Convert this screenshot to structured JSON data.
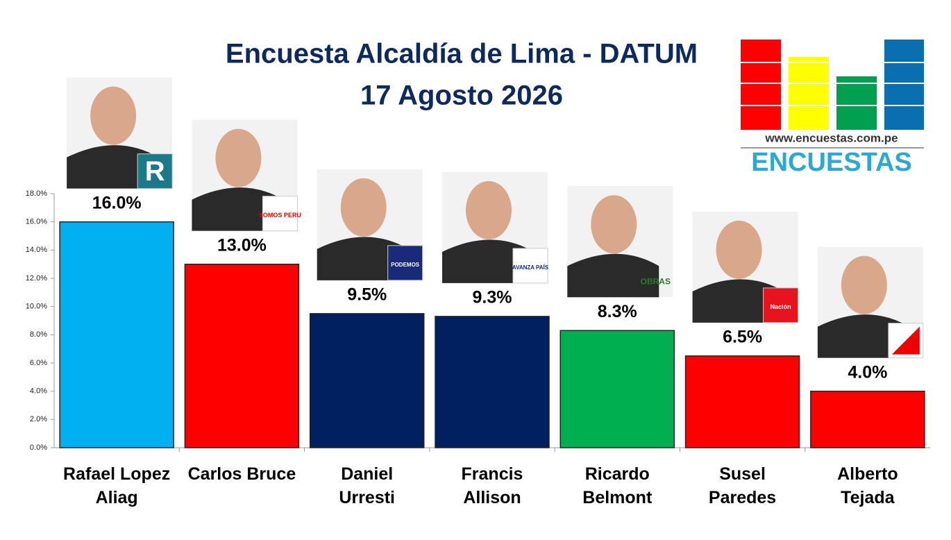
{
  "chart_data": {
    "type": "bar",
    "title": "Encuesta Alcaldía de Lima - DATUM",
    "subtitle": "17 Agosto 2026",
    "categories": [
      "Rafael Lopez Aliag",
      "Carlos Bruce",
      "Daniel Urresti",
      "Francis Allison",
      "Ricardo Belmont",
      "Susel Paredes",
      "Alberto Tejada"
    ],
    "values": [
      16.0,
      13.0,
      9.5,
      9.3,
      8.3,
      6.5,
      4.0
    ],
    "value_labels": [
      "16.0%",
      "13.0%",
      "9.5%",
      "9.3%",
      "8.3%",
      "6.5%",
      "4.0%"
    ],
    "colors": [
      "#00b0f0",
      "#ff0000",
      "#002060",
      "#002060",
      "#00b050",
      "#ff0000",
      "#ff0000"
    ],
    "party_logos": [
      "R",
      "SOMOS PERU",
      "PODEMOS",
      "AVANZA PAÍS",
      "OBRAS",
      "Nación",
      null
    ],
    "ylim": [
      0,
      18
    ],
    "yticks": [
      {
        "value": 0,
        "label": "0.0%"
      },
      {
        "value": 2,
        "label": "2.0%"
      },
      {
        "value": 4,
        "label": "4.0%"
      },
      {
        "value": 6,
        "label": "6.0%"
      },
      {
        "value": 8,
        "label": "8.0%"
      },
      {
        "value": 10,
        "label": "10.0%"
      },
      {
        "value": 12,
        "label": "12.0%"
      },
      {
        "value": 14,
        "label": "14.0%"
      },
      {
        "value": 16,
        "label": "16.0%"
      },
      {
        "value": 18,
        "label": "18.0%"
      }
    ],
    "grid": false,
    "brand": {
      "url": "www.encuestas.com.pe",
      "name": "ENCUESTAS"
    }
  }
}
